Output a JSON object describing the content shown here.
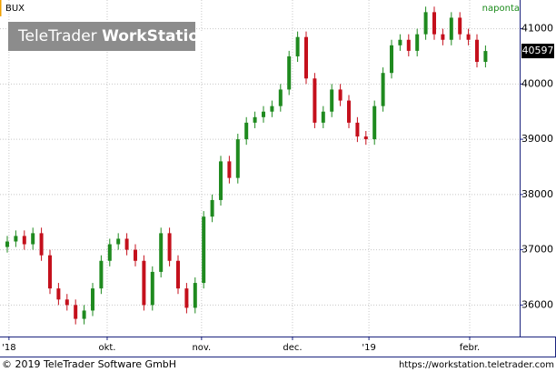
{
  "chart_data": {
    "type": "candlestick",
    "title": "BUX",
    "period": "naponta",
    "watermark": [
      "TeleTrader",
      "WorkStation"
    ],
    "footer_left": "© 2019 TeleTrader Software GmbH",
    "footer_right": "https://workstation.teletrader.com",
    "up_color": "#1f8a1f",
    "down_color": "#c4101c",
    "x": [
      0,
      2,
      4,
      6,
      8,
      10,
      12,
      14,
      16,
      18,
      20,
      22,
      24,
      26,
      28,
      30,
      32,
      34,
      36,
      38,
      40,
      42,
      44,
      46,
      48,
      50,
      52,
      54,
      56,
      58,
      60,
      62,
      64,
      66,
      68,
      70,
      72,
      74,
      76,
      78,
      80,
      82,
      84,
      86,
      88,
      90,
      92,
      94,
      96,
      98,
      100,
      102,
      104,
      106,
      108,
      110,
      112
    ],
    "open": [
      37050,
      37150,
      37250,
      37100,
      37300,
      36900,
      36300,
      36100,
      36000,
      35750,
      35900,
      36300,
      36800,
      37100,
      37200,
      37000,
      36800,
      36000,
      36600,
      37300,
      36800,
      36300,
      35950,
      36400,
      37600,
      37900,
      38600,
      38300,
      39000,
      39300,
      39400,
      39500,
      39600,
      39900,
      40500,
      40850,
      40100,
      39300,
      39500,
      39900,
      39700,
      39300,
      39050,
      39000,
      39600,
      40200,
      40700,
      40800,
      40600,
      40900,
      41300,
      40900,
      40800,
      41200,
      40900,
      40800,
      40400
    ],
    "high": [
      37250,
      37350,
      37350,
      37400,
      37400,
      37000,
      36400,
      36200,
      36100,
      36000,
      36400,
      36900,
      37200,
      37300,
      37300,
      37100,
      36900,
      36700,
      37400,
      37400,
      36900,
      36400,
      36500,
      37700,
      38000,
      38700,
      38700,
      39100,
      39400,
      39500,
      39600,
      39700,
      40000,
      40600,
      40950,
      40950,
      40200,
      39600,
      40000,
      40000,
      39800,
      39400,
      39150,
      39700,
      40300,
      40800,
      40900,
      40900,
      41000,
      41400,
      41400,
      41000,
      41300,
      41300,
      41000,
      40900,
      40697
    ],
    "low": [
      36950,
      37050,
      37000,
      37000,
      36800,
      36200,
      36000,
      35900,
      35650,
      35650,
      35800,
      36200,
      36700,
      37000,
      36900,
      36700,
      35900,
      35900,
      36500,
      36700,
      36200,
      35850,
      35850,
      36300,
      37500,
      37800,
      38200,
      38200,
      38900,
      39200,
      39300,
      39400,
      39500,
      39800,
      40400,
      40000,
      39200,
      39200,
      39400,
      39600,
      39200,
      38950,
      38900,
      38900,
      39500,
      40100,
      40600,
      40500,
      40500,
      40800,
      40800,
      40700,
      40700,
      40800,
      40700,
      40300,
      40300
    ],
    "close": [
      37150,
      37250,
      37100,
      37300,
      36900,
      36300,
      36100,
      36000,
      35750,
      35900,
      36300,
      36800,
      37100,
      37200,
      37000,
      36800,
      36000,
      36600,
      37300,
      36800,
      36300,
      35950,
      36400,
      37600,
      37900,
      38600,
      38300,
      39000,
      39300,
      39400,
      39500,
      39600,
      39900,
      40500,
      40850,
      40100,
      39300,
      39500,
      39900,
      39700,
      39300,
      39050,
      39000,
      39600,
      40200,
      40700,
      40800,
      40600,
      40900,
      41300,
      40900,
      40800,
      41200,
      40900,
      40800,
      40400,
      40597
    ],
    "xlim": [
      -1.7,
      120
    ],
    "xticks": [
      {
        "value": 0.4,
        "label": "'18"
      },
      {
        "value": 23.4,
        "label": "okt."
      },
      {
        "value": 45.5,
        "label": "nov."
      },
      {
        "value": 66.8,
        "label": "dec."
      },
      {
        "value": 84.7,
        "label": "'19"
      },
      {
        "value": 108.3,
        "label": "febr."
      }
    ],
    "ylim": [
      35430,
      41520
    ],
    "yticks": [
      36000,
      37000,
      38000,
      39000,
      40000,
      41000
    ],
    "grid": true
  }
}
